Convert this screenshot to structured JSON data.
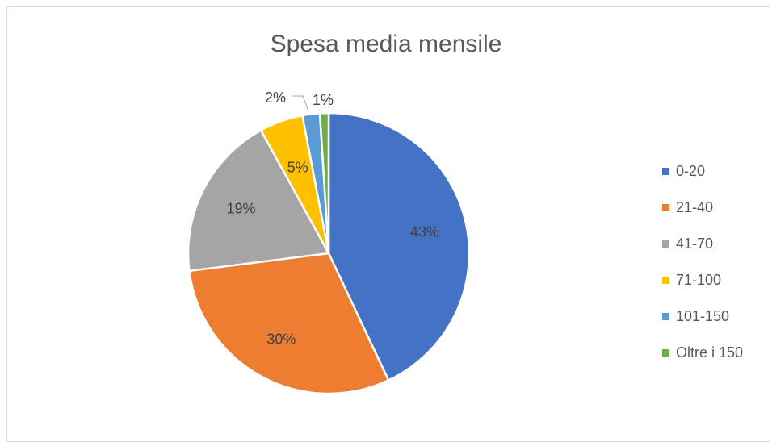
{
  "chart_data": {
    "type": "pie",
    "title": "Spesa media mensile",
    "categories": [
      "0-20",
      "21-40",
      "41-70",
      "71-100",
      "101-150",
      "Oltre i 150"
    ],
    "values": [
      43,
      30,
      19,
      5,
      2,
      1
    ],
    "data_labels": [
      "43%",
      "30%",
      "19%",
      "5%",
      "2%",
      "1%"
    ],
    "colors": [
      "#4472C4",
      "#ED7D31",
      "#A5A5A5",
      "#FFC000",
      "#5B9BD5",
      "#70AD47"
    ],
    "legend_position": "right"
  }
}
